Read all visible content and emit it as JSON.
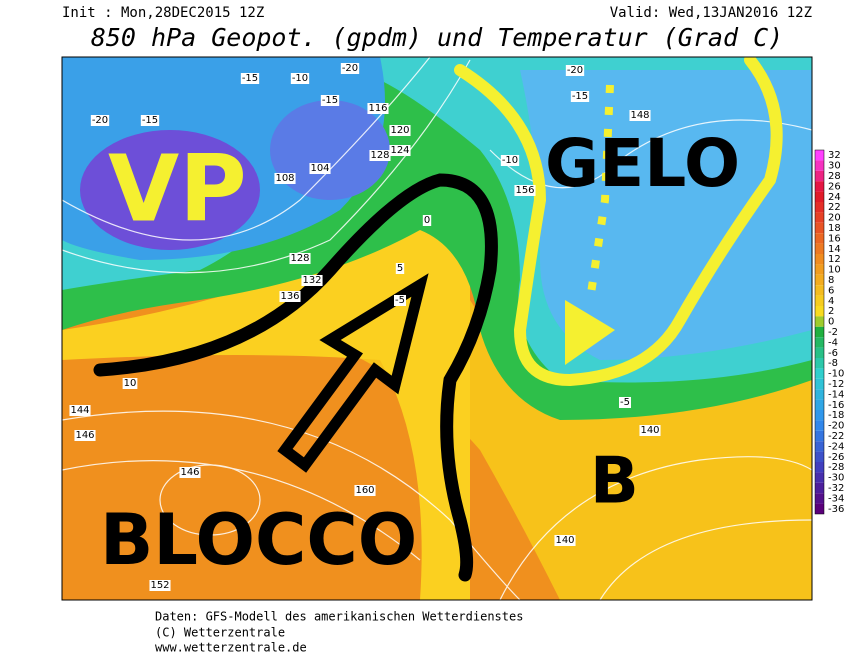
{
  "header": {
    "init": "Init : Mon,28DEC2015 12Z",
    "valid": "Valid: Wed,13JAN2016 12Z",
    "title": "850 hPa Geopot. (gpdm) und Temperatur (Grad C)"
  },
  "annotations": {
    "vp": "VP",
    "gelo": "GELO",
    "b": "B",
    "blocco": "BLOCCO"
  },
  "contour_labels": [
    "-20",
    "-15",
    "-10",
    "-15",
    "116",
    "120",
    "128",
    "124",
    "108",
    "104",
    "-20",
    "-15",
    "-10",
    "-5",
    "128",
    "132",
    "136",
    "144",
    "146",
    "146",
    "152",
    "156",
    "160",
    "148",
    "140",
    "140",
    "-20",
    "-15",
    "0",
    "5",
    "10",
    "-5"
  ],
  "legend": {
    "labels": [
      "32",
      "30",
      "28",
      "26",
      "24",
      "22",
      "20",
      "18",
      "16",
      "14",
      "12",
      "10",
      "8",
      "6",
      "4",
      "2",
      "0",
      "-2",
      "-4",
      "-6",
      "-8",
      "-10",
      "-12",
      "-14",
      "-16",
      "-18",
      "-20",
      "-22",
      "-24",
      "-26",
      "-28",
      "-30",
      "-32",
      "-34",
      "-36"
    ]
  },
  "footer": {
    "line1": "Daten: GFS-Modell des amerikanischen Wetterdienstes",
    "line2": "(C) Wetterzentrale",
    "line3": "www.wetterzentrale.de"
  }
}
